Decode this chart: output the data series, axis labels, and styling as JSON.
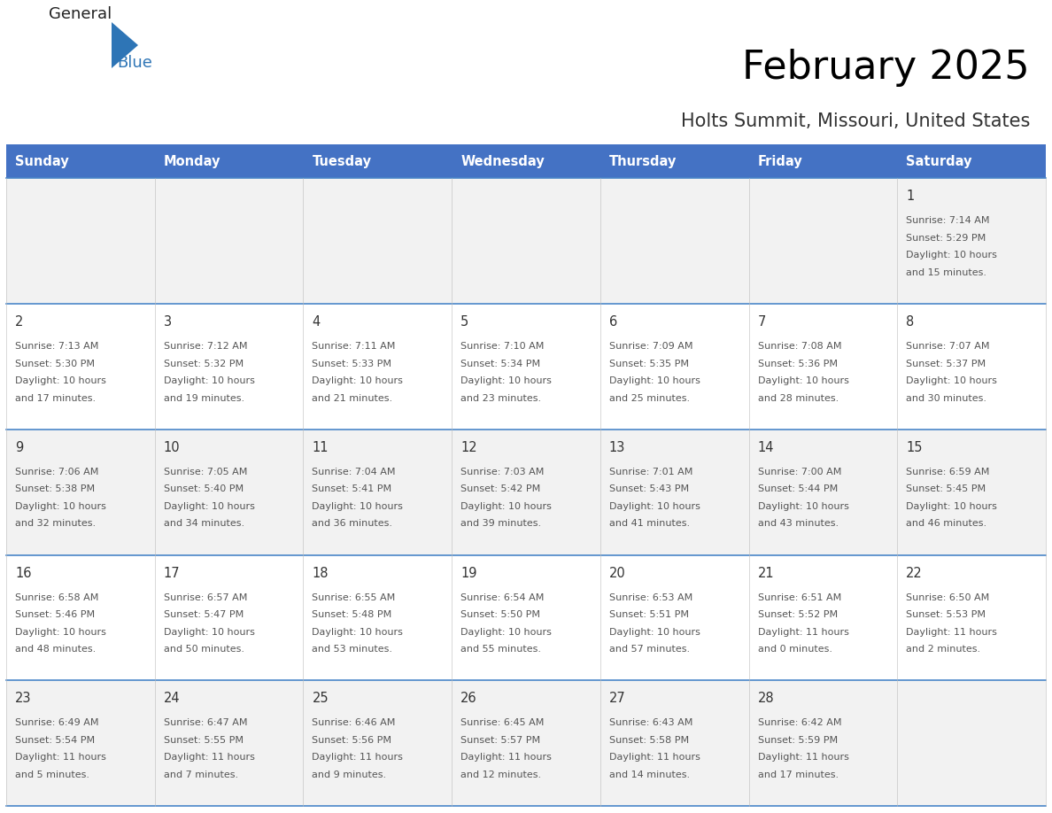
{
  "title": "February 2025",
  "subtitle": "Holts Summit, Missouri, United States",
  "days_of_week": [
    "Sunday",
    "Monday",
    "Tuesday",
    "Wednesday",
    "Thursday",
    "Friday",
    "Saturday"
  ],
  "header_bg": "#4472C4",
  "header_text": "#FFFFFF",
  "cell_bg_row0": "#F2F2F2",
  "cell_bg_row1": "#FFFFFF",
  "cell_bg_row2": "#F2F2F2",
  "cell_bg_row3": "#FFFFFF",
  "cell_bg_row4": "#F2F2F2",
  "cell_border": "#4A86C8",
  "title_color": "#000000",
  "subtitle_color": "#333333",
  "day_number_color": "#333333",
  "info_color": "#555555",
  "logo_dark": "#222222",
  "logo_blue": "#2E75B6",
  "triangle_color": "#2E75B6",
  "calendar_data": [
    {
      "day": 1,
      "col": 6,
      "row": 0,
      "sunrise": "7:14 AM",
      "sunset": "5:29 PM",
      "daylight_line1": "Daylight: 10 hours",
      "daylight_line2": "and 15 minutes."
    },
    {
      "day": 2,
      "col": 0,
      "row": 1,
      "sunrise": "7:13 AM",
      "sunset": "5:30 PM",
      "daylight_line1": "Daylight: 10 hours",
      "daylight_line2": "and 17 minutes."
    },
    {
      "day": 3,
      "col": 1,
      "row": 1,
      "sunrise": "7:12 AM",
      "sunset": "5:32 PM",
      "daylight_line1": "Daylight: 10 hours",
      "daylight_line2": "and 19 minutes."
    },
    {
      "day": 4,
      "col": 2,
      "row": 1,
      "sunrise": "7:11 AM",
      "sunset": "5:33 PM",
      "daylight_line1": "Daylight: 10 hours",
      "daylight_line2": "and 21 minutes."
    },
    {
      "day": 5,
      "col": 3,
      "row": 1,
      "sunrise": "7:10 AM",
      "sunset": "5:34 PM",
      "daylight_line1": "Daylight: 10 hours",
      "daylight_line2": "and 23 minutes."
    },
    {
      "day": 6,
      "col": 4,
      "row": 1,
      "sunrise": "7:09 AM",
      "sunset": "5:35 PM",
      "daylight_line1": "Daylight: 10 hours",
      "daylight_line2": "and 25 minutes."
    },
    {
      "day": 7,
      "col": 5,
      "row": 1,
      "sunrise": "7:08 AM",
      "sunset": "5:36 PM",
      "daylight_line1": "Daylight: 10 hours",
      "daylight_line2": "and 28 minutes."
    },
    {
      "day": 8,
      "col": 6,
      "row": 1,
      "sunrise": "7:07 AM",
      "sunset": "5:37 PM",
      "daylight_line1": "Daylight: 10 hours",
      "daylight_line2": "and 30 minutes."
    },
    {
      "day": 9,
      "col": 0,
      "row": 2,
      "sunrise": "7:06 AM",
      "sunset": "5:38 PM",
      "daylight_line1": "Daylight: 10 hours",
      "daylight_line2": "and 32 minutes."
    },
    {
      "day": 10,
      "col": 1,
      "row": 2,
      "sunrise": "7:05 AM",
      "sunset": "5:40 PM",
      "daylight_line1": "Daylight: 10 hours",
      "daylight_line2": "and 34 minutes."
    },
    {
      "day": 11,
      "col": 2,
      "row": 2,
      "sunrise": "7:04 AM",
      "sunset": "5:41 PM",
      "daylight_line1": "Daylight: 10 hours",
      "daylight_line2": "and 36 minutes."
    },
    {
      "day": 12,
      "col": 3,
      "row": 2,
      "sunrise": "7:03 AM",
      "sunset": "5:42 PM",
      "daylight_line1": "Daylight: 10 hours",
      "daylight_line2": "and 39 minutes."
    },
    {
      "day": 13,
      "col": 4,
      "row": 2,
      "sunrise": "7:01 AM",
      "sunset": "5:43 PM",
      "daylight_line1": "Daylight: 10 hours",
      "daylight_line2": "and 41 minutes."
    },
    {
      "day": 14,
      "col": 5,
      "row": 2,
      "sunrise": "7:00 AM",
      "sunset": "5:44 PM",
      "daylight_line1": "Daylight: 10 hours",
      "daylight_line2": "and 43 minutes."
    },
    {
      "day": 15,
      "col": 6,
      "row": 2,
      "sunrise": "6:59 AM",
      "sunset": "5:45 PM",
      "daylight_line1": "Daylight: 10 hours",
      "daylight_line2": "and 46 minutes."
    },
    {
      "day": 16,
      "col": 0,
      "row": 3,
      "sunrise": "6:58 AM",
      "sunset": "5:46 PM",
      "daylight_line1": "Daylight: 10 hours",
      "daylight_line2": "and 48 minutes."
    },
    {
      "day": 17,
      "col": 1,
      "row": 3,
      "sunrise": "6:57 AM",
      "sunset": "5:47 PM",
      "daylight_line1": "Daylight: 10 hours",
      "daylight_line2": "and 50 minutes."
    },
    {
      "day": 18,
      "col": 2,
      "row": 3,
      "sunrise": "6:55 AM",
      "sunset": "5:48 PM",
      "daylight_line1": "Daylight: 10 hours",
      "daylight_line2": "and 53 minutes."
    },
    {
      "day": 19,
      "col": 3,
      "row": 3,
      "sunrise": "6:54 AM",
      "sunset": "5:50 PM",
      "daylight_line1": "Daylight: 10 hours",
      "daylight_line2": "and 55 minutes."
    },
    {
      "day": 20,
      "col": 4,
      "row": 3,
      "sunrise": "6:53 AM",
      "sunset": "5:51 PM",
      "daylight_line1": "Daylight: 10 hours",
      "daylight_line2": "and 57 minutes."
    },
    {
      "day": 21,
      "col": 5,
      "row": 3,
      "sunrise": "6:51 AM",
      "sunset": "5:52 PM",
      "daylight_line1": "Daylight: 11 hours",
      "daylight_line2": "and 0 minutes."
    },
    {
      "day": 22,
      "col": 6,
      "row": 3,
      "sunrise": "6:50 AM",
      "sunset": "5:53 PM",
      "daylight_line1": "Daylight: 11 hours",
      "daylight_line2": "and 2 minutes."
    },
    {
      "day": 23,
      "col": 0,
      "row": 4,
      "sunrise": "6:49 AM",
      "sunset": "5:54 PM",
      "daylight_line1": "Daylight: 11 hours",
      "daylight_line2": "and 5 minutes."
    },
    {
      "day": 24,
      "col": 1,
      "row": 4,
      "sunrise": "6:47 AM",
      "sunset": "5:55 PM",
      "daylight_line1": "Daylight: 11 hours",
      "daylight_line2": "and 7 minutes."
    },
    {
      "day": 25,
      "col": 2,
      "row": 4,
      "sunrise": "6:46 AM",
      "sunset": "5:56 PM",
      "daylight_line1": "Daylight: 11 hours",
      "daylight_line2": "and 9 minutes."
    },
    {
      "day": 26,
      "col": 3,
      "row": 4,
      "sunrise": "6:45 AM",
      "sunset": "5:57 PM",
      "daylight_line1": "Daylight: 11 hours",
      "daylight_line2": "and 12 minutes."
    },
    {
      "day": 27,
      "col": 4,
      "row": 4,
      "sunrise": "6:43 AM",
      "sunset": "5:58 PM",
      "daylight_line1": "Daylight: 11 hours",
      "daylight_line2": "and 14 minutes."
    },
    {
      "day": 28,
      "col": 5,
      "row": 4,
      "sunrise": "6:42 AM",
      "sunset": "5:59 PM",
      "daylight_line1": "Daylight: 11 hours",
      "daylight_line2": "and 17 minutes."
    }
  ],
  "num_rows": 5,
  "num_cols": 7,
  "fig_width": 11.88,
  "fig_height": 9.18,
  "dpi": 100
}
